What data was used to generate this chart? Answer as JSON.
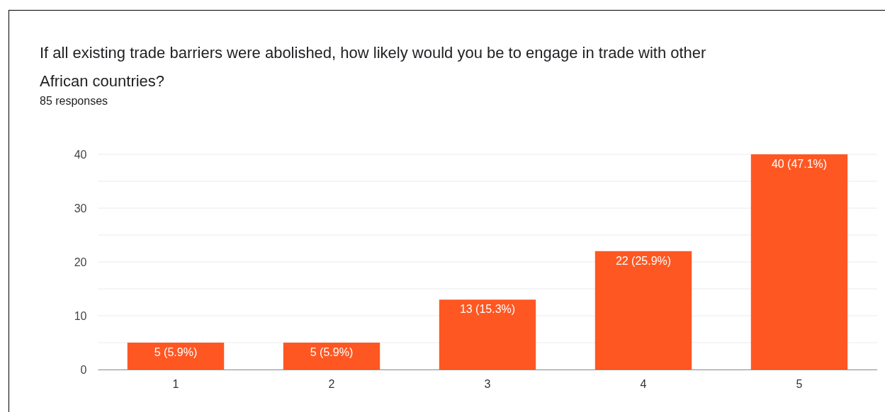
{
  "chart_data": {
    "type": "bar",
    "title": "If all existing trade barriers were abolished, how likely would you be to engage in trade with other African countries?",
    "subtitle": "85 responses",
    "categories": [
      "1",
      "2",
      "3",
      "4",
      "5"
    ],
    "values": [
      5,
      5,
      13,
      22,
      40
    ],
    "value_labels": [
      "5 (5.9%)",
      "5 (5.9%)",
      "13 (15.3%)",
      "22 (25.9%)",
      "40 (47.1%)"
    ],
    "color": "#ff5722",
    "ylim": [
      0,
      40
    ],
    "yticks": [
      0,
      {
        "value": 5,
        "label": null
      },
      10,
      {
        "value": 15,
        "label": null
      },
      20,
      {
        "value": 25,
        "label": null
      },
      30,
      {
        "value": 35,
        "label": null
      },
      40
    ],
    "grid": "y"
  }
}
